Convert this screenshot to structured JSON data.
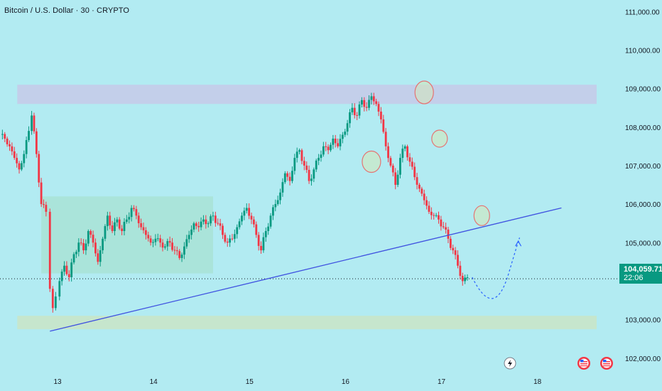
{
  "header": {
    "title": "Bitcoin / U.S. Dollar · 30 · CRYPTO"
  },
  "price_tag": {
    "price": "104,059.71",
    "countdown": "22:06"
  },
  "colors": {
    "background": "#b2ebf2",
    "up": "#089981",
    "down": "#f23645",
    "trendline": "#3f51e0",
    "projection": "#2962ff",
    "resistance_zone": "#c5cae9",
    "support_zone": "#c8e6c9",
    "range_box": "#a5e0c9",
    "circle_fill": "#d4e8b8",
    "circle_stroke": "#e57373"
  },
  "chart_data": {
    "type": "candlestick",
    "title": "Bitcoin / U.S. Dollar · 30 · CRYPTO",
    "x_ticks": [
      "13",
      "14",
      "15",
      "16",
      "17",
      "18"
    ],
    "y_ticks": [
      "111,000.00",
      "110,000.00",
      "109,000.00",
      "108,000.00",
      "107,000.00",
      "106,000.00",
      "105,000.00",
      "103,000.00",
      "102,000.00"
    ],
    "ylim": [
      101700,
      111300
    ],
    "xlim": [
      12.4,
      18.75
    ],
    "current_price": 104059.71,
    "closes": [
      [
        12.4,
        107800
      ],
      [
        12.45,
        107700
      ],
      [
        12.5,
        107500
      ],
      [
        12.55,
        107200
      ],
      [
        12.6,
        106900
      ],
      [
        12.65,
        107300
      ],
      [
        12.7,
        107900
      ],
      [
        12.73,
        108300
      ],
      [
        12.78,
        107300
      ],
      [
        12.83,
        106000
      ],
      [
        12.88,
        105800
      ],
      [
        12.92,
        103800
      ],
      [
        12.95,
        103300
      ],
      [
        12.98,
        103600
      ],
      [
        13.02,
        104000
      ],
      [
        13.07,
        104400
      ],
      [
        13.12,
        104100
      ],
      [
        13.17,
        104700
      ],
      [
        13.22,
        105000
      ],
      [
        13.27,
        104800
      ],
      [
        13.32,
        105300
      ],
      [
        13.37,
        105000
      ],
      [
        13.42,
        104500
      ],
      [
        13.47,
        105100
      ],
      [
        13.52,
        105700
      ],
      [
        13.57,
        105300
      ],
      [
        13.62,
        105600
      ],
      [
        13.67,
        105300
      ],
      [
        13.72,
        105600
      ],
      [
        13.77,
        105900
      ],
      [
        13.82,
        105700
      ],
      [
        13.87,
        105400
      ],
      [
        13.92,
        105200
      ],
      [
        13.97,
        105000
      ],
      [
        14.02,
        105100
      ],
      [
        14.07,
        105000
      ],
      [
        14.12,
        104900
      ],
      [
        14.17,
        105000
      ],
      [
        14.22,
        104800
      ],
      [
        14.27,
        104600
      ],
      [
        14.32,
        104900
      ],
      [
        14.37,
        105200
      ],
      [
        14.42,
        105500
      ],
      [
        14.47,
        105400
      ],
      [
        14.52,
        105600
      ],
      [
        14.57,
        105500
      ],
      [
        14.62,
        105700
      ],
      [
        14.67,
        105500
      ],
      [
        14.72,
        105200
      ],
      [
        14.77,
        105000
      ],
      [
        14.82,
        105100
      ],
      [
        14.87,
        105400
      ],
      [
        14.92,
        105700
      ],
      [
        14.97,
        105900
      ],
      [
        15.02,
        105600
      ],
      [
        15.07,
        105200
      ],
      [
        15.12,
        104800
      ],
      [
        15.17,
        105300
      ],
      [
        15.22,
        105700
      ],
      [
        15.27,
        106000
      ],
      [
        15.32,
        106300
      ],
      [
        15.37,
        106800
      ],
      [
        15.42,
        106600
      ],
      [
        15.47,
        107200
      ],
      [
        15.52,
        107400
      ],
      [
        15.57,
        107000
      ],
      [
        15.62,
        106600
      ],
      [
        15.67,
        106900
      ],
      [
        15.72,
        107200
      ],
      [
        15.77,
        107500
      ],
      [
        15.82,
        107400
      ],
      [
        15.87,
        107700
      ],
      [
        15.92,
        107500
      ],
      [
        15.97,
        107800
      ],
      [
        16.02,
        108100
      ],
      [
        16.07,
        108500
      ],
      [
        16.12,
        108300
      ],
      [
        16.17,
        108700
      ],
      [
        16.22,
        108500
      ],
      [
        16.27,
        108800
      ],
      [
        16.32,
        108600
      ],
      [
        16.37,
        108200
      ],
      [
        16.42,
        107500
      ],
      [
        16.47,
        107000
      ],
      [
        16.52,
        106500
      ],
      [
        16.57,
        107200
      ],
      [
        16.62,
        107500
      ],
      [
        16.67,
        107100
      ],
      [
        16.72,
        106700
      ],
      [
        16.77,
        106400
      ],
      [
        16.82,
        106100
      ],
      [
        16.87,
        105800
      ],
      [
        16.92,
        105700
      ],
      [
        16.97,
        105600
      ],
      [
        17.02,
        105400
      ],
      [
        17.07,
        105100
      ],
      [
        17.12,
        104800
      ],
      [
        17.17,
        104400
      ],
      [
        17.22,
        104000
      ],
      [
        17.27,
        104100
      ]
    ],
    "trendline": [
      [
        12.92,
        102700
      ],
      [
        18.25,
        105900
      ]
    ],
    "projection": [
      [
        17.32,
        104100
      ],
      [
        17.55,
        103500
      ],
      [
        17.7,
        104200
      ],
      [
        17.8,
        105000
      ]
    ],
    "zones": {
      "resistance": [
        108600,
        109100
      ],
      "support": [
        102750,
        103100
      ],
      "range": [
        12.83,
        14.62,
        104200,
        106200
      ]
    },
    "circles": [
      [
        16.27,
        107100
      ],
      [
        16.82,
        108900
      ],
      [
        16.98,
        107700
      ],
      [
        17.42,
        105700
      ]
    ]
  }
}
